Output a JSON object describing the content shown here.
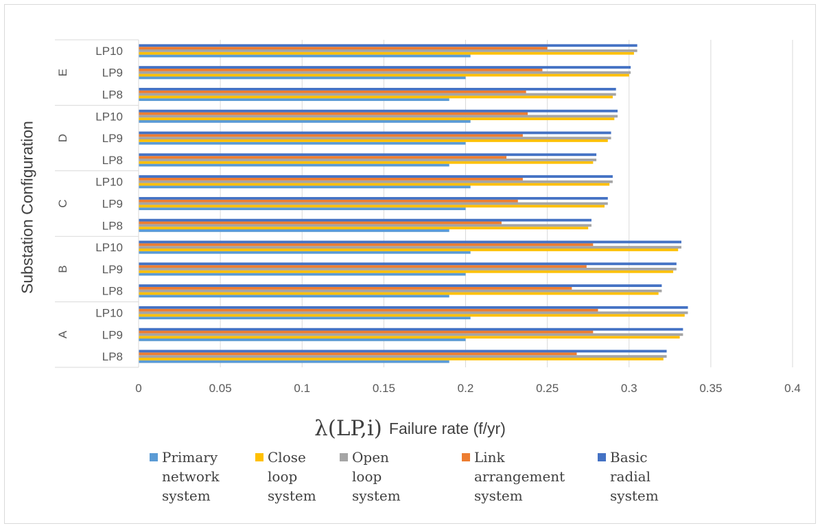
{
  "chart_data": {
    "type": "bar",
    "orientation": "horizontal",
    "xlabel": {
      "symbol": "λ(LP,i)",
      "text": "Failure rate (f/yr)"
    },
    "ylabel": "Substation Configuration",
    "xlim": [
      0,
      0.4
    ],
    "xticks": [
      "0",
      "0.05",
      "0.1",
      "0.15",
      "0.2",
      "0.25",
      "0.3",
      "0.35",
      "0.4"
    ],
    "grid": true,
    "legend_position": "bottom",
    "groups": [
      {
        "name": "A",
        "categories": [
          "LP8",
          "LP9",
          "LP10"
        ]
      },
      {
        "name": "B",
        "categories": [
          "LP8",
          "LP9",
          "LP10"
        ]
      },
      {
        "name": "C",
        "categories": [
          "LP8",
          "LP9",
          "LP10"
        ]
      },
      {
        "name": "D",
        "categories": [
          "LP8",
          "LP9",
          "LP10"
        ]
      },
      {
        "name": "E",
        "categories": [
          "LP8",
          "LP9",
          "LP10"
        ]
      }
    ],
    "series": [
      {
        "name": "Primary network system",
        "color": "#5b9bd5",
        "values": [
          0.19,
          0.2,
          0.203,
          0.19,
          0.2,
          0.203,
          0.19,
          0.2,
          0.203,
          0.19,
          0.2,
          0.203,
          0.19,
          0.2,
          0.203
        ]
      },
      {
        "name": "Close loop system",
        "color": "#ffc000",
        "values": [
          0.321,
          0.331,
          0.334,
          0.318,
          0.327,
          0.33,
          0.275,
          0.285,
          0.288,
          0.278,
          0.287,
          0.291,
          0.29,
          0.3,
          0.303
        ]
      },
      {
        "name": "Open loop system",
        "color": "#a5a5a5",
        "values": [
          0.323,
          0.333,
          0.336,
          0.32,
          0.329,
          0.332,
          0.277,
          0.287,
          0.29,
          0.28,
          0.289,
          0.293,
          0.292,
          0.301,
          0.305
        ]
      },
      {
        "name": "Link arrangement system",
        "color": "#ed7d31",
        "values": [
          0.268,
          0.278,
          0.281,
          0.265,
          0.274,
          0.278,
          0.222,
          0.232,
          0.235,
          0.225,
          0.235,
          0.238,
          0.237,
          0.247,
          0.25
        ]
      },
      {
        "name": "Basic radial system",
        "color": "#4472c4",
        "values": [
          0.323,
          0.333,
          0.336,
          0.32,
          0.329,
          0.332,
          0.277,
          0.287,
          0.29,
          0.28,
          0.289,
          0.293,
          0.292,
          0.301,
          0.305
        ]
      }
    ]
  },
  "legend": [
    {
      "label": "Primary\nnetwork\nsystem",
      "color": "#5b9bd5"
    },
    {
      "label": "Close\nloop\nsystem",
      "color": "#ffc000"
    },
    {
      "label": "Open loop\nsystem",
      "color": "#a5a5a5"
    },
    {
      "label": "Link\narrangement\nsystem",
      "color": "#ed7d31"
    },
    {
      "label": "Basic\nradial\nsystem",
      "color": "#4472c4"
    }
  ]
}
